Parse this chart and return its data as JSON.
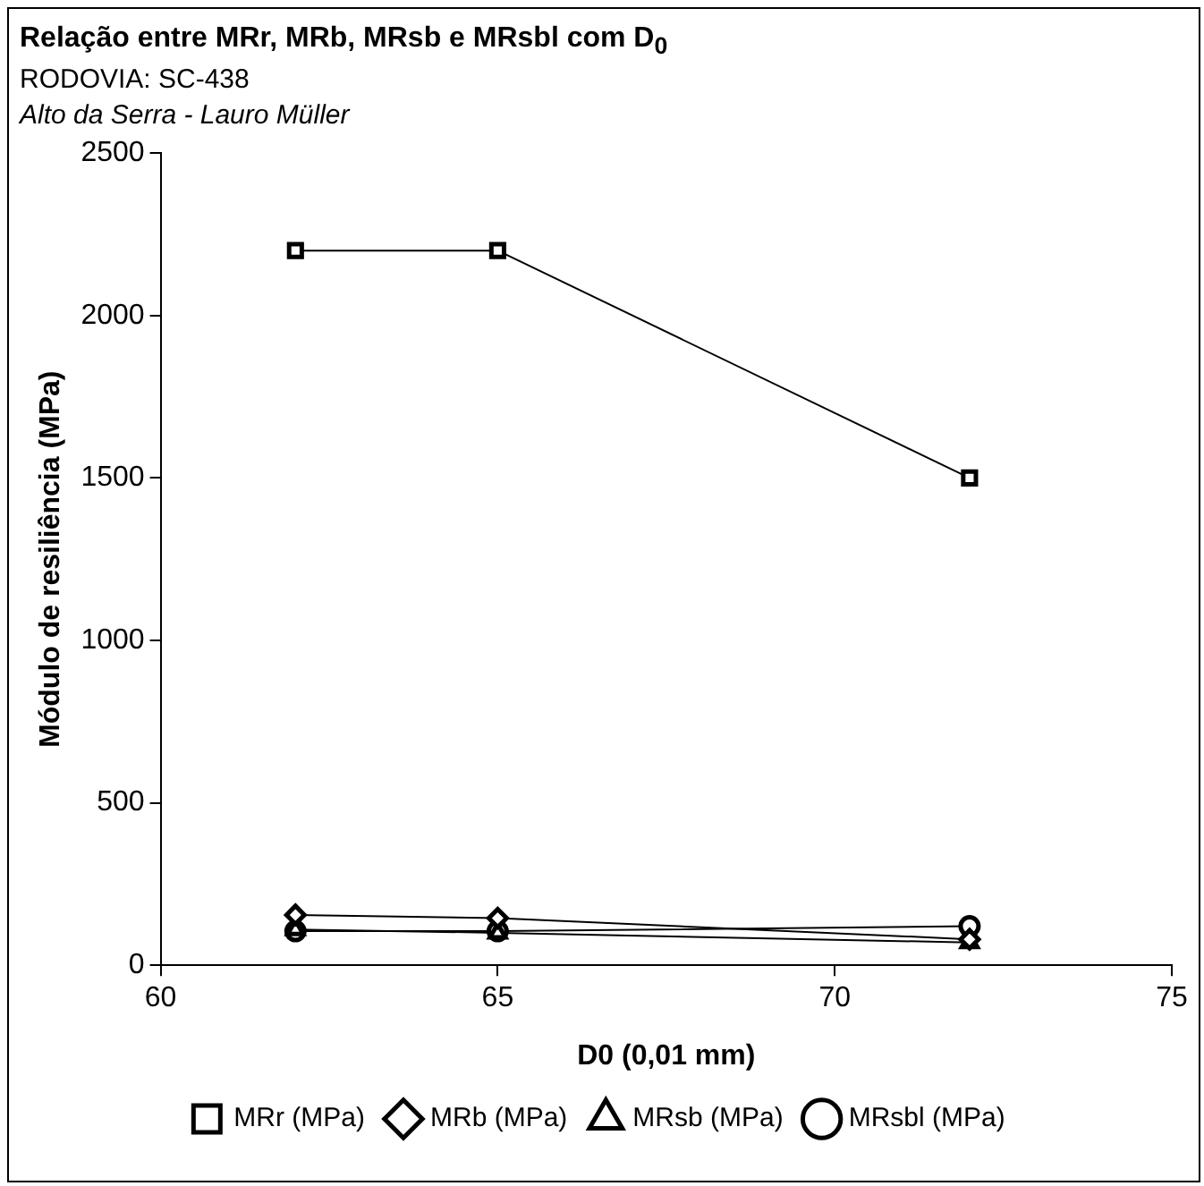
{
  "chart_data": {
    "type": "line",
    "title": "Relação entre MRr, MRb, MRsb e MRsbl com D$_{0}$",
    "subtitle": "RODOVIA: SC-438",
    "annotations": [
      "Alto da Serra - Lauro Müller"
    ],
    "xlabel": "D0 (0,01 mm)",
    "ylabel": "Módulo de resiliência (MPa)",
    "x": [
      62,
      65,
      72
    ],
    "xlim": [
      60,
      75
    ],
    "xticks": [
      60,
      65,
      70,
      75
    ],
    "ylim": [
      0,
      2500
    ],
    "yticks": [
      0,
      500,
      1000,
      1500,
      2000,
      2500
    ],
    "grid": false,
    "legend": "bottom",
    "series": [
      {
        "name": "MRr (MPa)",
        "color": "#000000",
        "marker": "square",
        "values": [
          2200,
          2200,
          1500
        ]
      },
      {
        "name": "MRb (MPa)",
        "color": "#000000",
        "marker": "diamond",
        "values": [
          155,
          145,
          80
        ]
      },
      {
        "name": "MRsb (MPa)",
        "color": "#000000",
        "marker": "triangle",
        "values": [
          110,
          100,
          70
        ]
      },
      {
        "name": "MRsbl (MPa)",
        "color": "#000000",
        "marker": "circle",
        "values": [
          105,
          105,
          120
        ]
      }
    ]
  }
}
